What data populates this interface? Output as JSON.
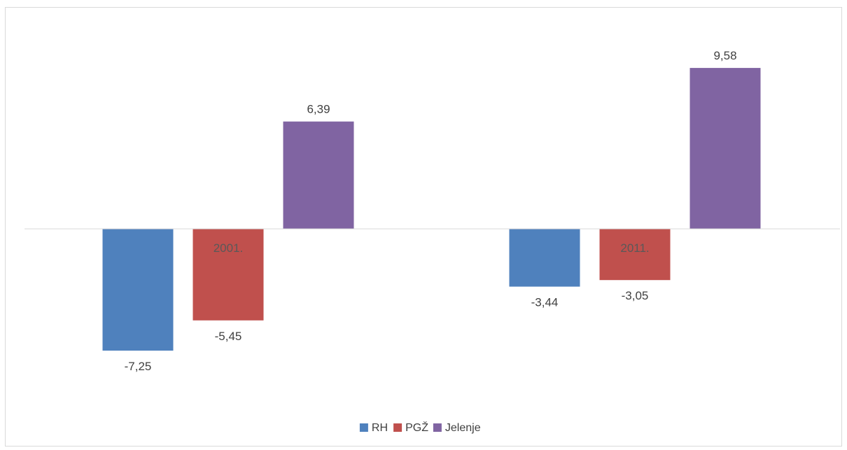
{
  "chart_data": {
    "type": "bar",
    "categories": [
      "2001.",
      "2011."
    ],
    "series": [
      {
        "name": "RH",
        "color": "#4F81BD",
        "values": [
          -7.25,
          -3.44
        ],
        "value_labels": [
          "-7,25",
          "-3,44"
        ]
      },
      {
        "name": "PGŽ",
        "color": "#C0504D",
        "values": [
          -5.45,
          -3.05
        ],
        "value_labels": [
          "-5,45",
          "-3,05"
        ]
      },
      {
        "name": "Jelenje",
        "color": "#8064A2",
        "values": [
          6.39,
          9.58
        ],
        "value_labels": [
          "6,39",
          "9,58"
        ]
      }
    ],
    "title": "",
    "xlabel": "",
    "ylabel": "",
    "ylim": [
      -10,
      11
    ],
    "grid": false,
    "legend": "bottom",
    "axis_line_color": "#d9d9d9"
  }
}
